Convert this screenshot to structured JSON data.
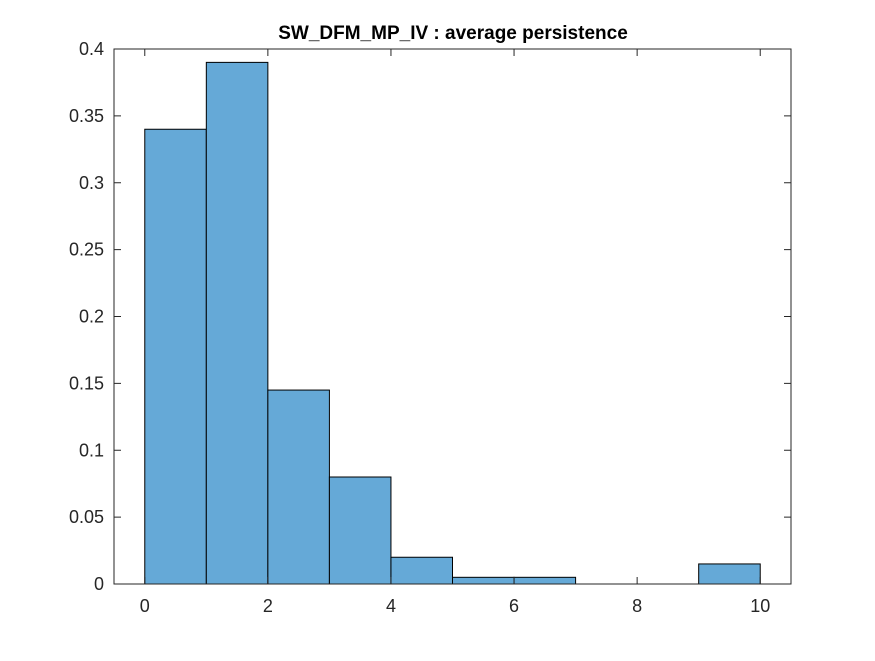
{
  "chart_data": {
    "type": "bar",
    "title": "SW_DFM_MP_IV : average persistence",
    "xlabel": "",
    "ylabel": "",
    "bin_edges": [
      0,
      1,
      2,
      3,
      4,
      5,
      6,
      7,
      8,
      9,
      10
    ],
    "values": [
      0.34,
      0.39,
      0.145,
      0.08,
      0.02,
      0.005,
      0.005,
      0,
      0,
      0.015
    ],
    "xlim": [
      -0.5,
      10.5
    ],
    "ylim": [
      0,
      0.4
    ],
    "xticks": [
      0,
      2,
      4,
      6,
      8,
      10
    ],
    "xtick_labels": [
      "0",
      "2",
      "4",
      "6",
      "8",
      "10"
    ],
    "yticks": [
      0,
      0.05,
      0.1,
      0.15,
      0.2,
      0.25,
      0.3,
      0.35,
      0.4
    ],
    "ytick_labels": [
      "0",
      "0.05",
      "0.1",
      "0.15",
      "0.2",
      "0.25",
      "0.3",
      "0.35",
      "0.4"
    ],
    "grid": false,
    "bar_color": "#65a9d7",
    "bar_edge_color": "#000000",
    "axis_color": "#262626"
  }
}
